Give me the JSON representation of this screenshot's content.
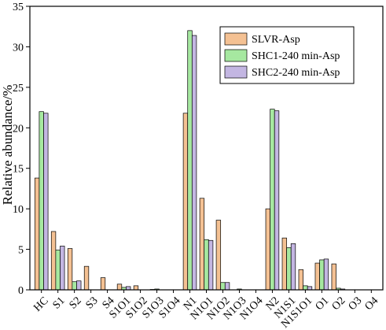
{
  "chart_data": {
    "type": "bar",
    "title": "",
    "xlabel": "",
    "ylabel": "Relative abundance/%",
    "ylim": [
      0,
      35
    ],
    "yticks": [
      0,
      5,
      10,
      15,
      20,
      25,
      30,
      35
    ],
    "grid": false,
    "legend_position": "top-right",
    "categories": [
      "HC",
      "S1",
      "S2",
      "S3",
      "S4",
      "S1O1",
      "S1O2",
      "S1O3",
      "S1O4",
      "N1",
      "N1O1",
      "N1O2",
      "N1O3",
      "N1O4",
      "N2",
      "N1S1",
      "N1S1O1",
      "O1",
      "O2",
      "O3",
      "O4"
    ],
    "series": [
      {
        "name": "SLVR-Asp",
        "color": "#f4c193",
        "values": [
          13.8,
          7.2,
          5.1,
          2.9,
          1.5,
          0.7,
          0.5,
          0.05,
          0,
          21.8,
          11.3,
          8.6,
          0,
          0,
          10.0,
          6.4,
          2.5,
          3.3,
          3.2,
          0,
          0
        ]
      },
      {
        "name": "SHC1-240 min-Asp",
        "color": "#a6e8a0",
        "values": [
          22.0,
          4.9,
          1.0,
          0,
          0,
          0.3,
          0,
          0.1,
          0,
          32.0,
          6.2,
          0.9,
          0.1,
          0,
          22.3,
          5.2,
          0.5,
          3.7,
          0.2,
          0,
          0
        ]
      },
      {
        "name": "SHC2-240 min-Asp",
        "color": "#c3b6e2",
        "values": [
          21.8,
          5.4,
          1.1,
          0,
          0,
          0.4,
          0,
          0,
          0,
          31.4,
          6.1,
          0.9,
          0,
          0,
          22.1,
          5.7,
          0.4,
          3.8,
          0.1,
          0,
          0
        ]
      }
    ]
  }
}
